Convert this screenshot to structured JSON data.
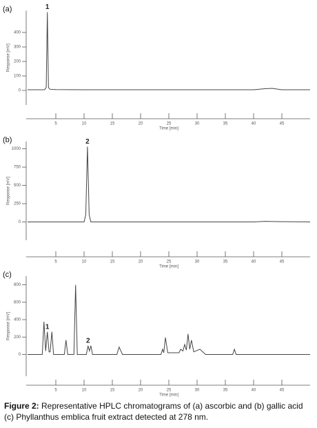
{
  "chart_data": [
    {
      "type": "line",
      "label": "(a)",
      "ylabel": "Response [mV]",
      "xlabel": "Time [min]",
      "xlim": [
        0,
        50
      ],
      "xticks": [
        5,
        10,
        15,
        20,
        25,
        30,
        35,
        40,
        45
      ],
      "ylim": [
        -100,
        550
      ],
      "yticks": [
        0,
        100,
        200,
        300,
        400
      ],
      "series": [
        {
          "color": "#444444",
          "x": [
            0,
            3.0,
            3.3,
            3.5,
            3.7,
            4.0,
            5,
            10,
            20,
            30,
            40,
            42,
            43.3,
            44,
            45,
            50
          ],
          "values": [
            5,
            5,
            20,
            540,
            20,
            8,
            6,
            5,
            5,
            5,
            5,
            12,
            14,
            10,
            5,
            5
          ]
        }
      ],
      "annotations": [
        {
          "text": "1",
          "x": 3.5
        }
      ]
    },
    {
      "type": "line",
      "label": "(b)",
      "ylabel": "Response [mV]",
      "xlabel": "Time [min]",
      "xlim": [
        0,
        50
      ],
      "xticks": [
        5,
        10,
        15,
        20,
        25,
        30,
        35,
        40,
        45
      ],
      "ylim": [
        -250,
        1100
      ],
      "yticks": [
        0,
        250,
        500,
        750,
        1000
      ],
      "series": [
        {
          "color": "#444444",
          "x": [
            0,
            10,
            10.3,
            10.6,
            10.9,
            11.2,
            20,
            40,
            42,
            44,
            50
          ],
          "values": [
            0,
            0,
            100,
            1030,
            100,
            0,
            0,
            0,
            8,
            5,
            0
          ]
        }
      ],
      "annotations": [
        {
          "text": "2",
          "x": 10.6
        }
      ]
    },
    {
      "type": "line",
      "label": "(c)",
      "ylabel": "Response [mV]",
      "xlabel": "Time [min]",
      "xlim": [
        0,
        50
      ],
      "xticks": [
        5,
        10,
        15,
        20,
        25,
        30,
        35,
        40,
        45
      ],
      "ylim": [
        -250,
        900
      ],
      "yticks": [
        0,
        200,
        400,
        600,
        800
      ],
      "series": [
        {
          "color": "#444444",
          "x": [
            0,
            2.6,
            2.9,
            3.2,
            3.5,
            3.8,
            4.0,
            4.3,
            4.6,
            6.5,
            6.8,
            7.1,
            8.2,
            8.5,
            8.8,
            10.4,
            10.7,
            10.95,
            11.2,
            11.5,
            15.8,
            16.2,
            16.8,
            23.6,
            23.9,
            24.1,
            24.4,
            24.8,
            26.8,
            27.1,
            27.5,
            27.8,
            28.1,
            28.4,
            28.7,
            29.0,
            29.4,
            30.5,
            31.5,
            36.3,
            36.6,
            36.9,
            50
          ],
          "values": [
            0,
            0,
            376,
            40,
            260,
            30,
            30,
            260,
            0,
            0,
            165,
            0,
            0,
            800,
            0,
            0,
            100,
            40,
            100,
            0,
            0,
            85,
            0,
            0,
            60,
            20,
            195,
            20,
            20,
            60,
            40,
            115,
            50,
            235,
            60,
            165,
            30,
            60,
            0,
            0,
            60,
            0,
            0
          ]
        }
      ],
      "annotations": [
        {
          "text": "1",
          "x": 3.5
        },
        {
          "text": "2",
          "x": 10.7
        }
      ]
    }
  ],
  "caption": {
    "label": "Figure 2:",
    "text": "Representative HPLC chromatograms of (a) ascorbic and (b) gallic acid (c) Phyllanthus emblica fruit extract detected at 278 nm."
  }
}
